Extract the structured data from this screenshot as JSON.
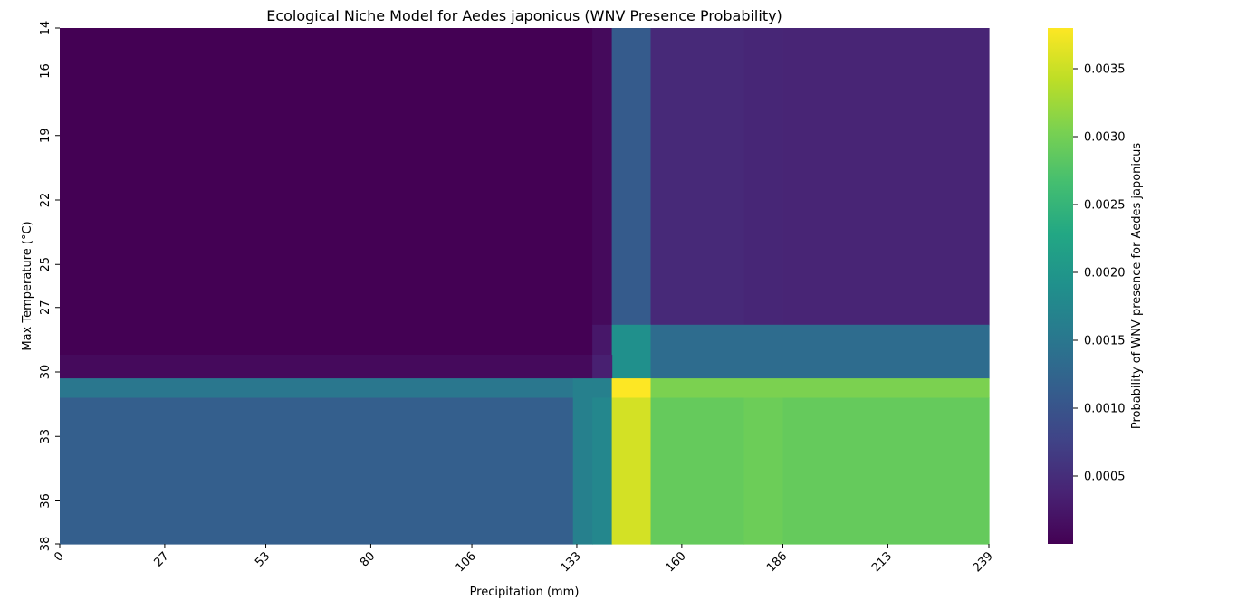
{
  "chart_data": {
    "type": "heatmap",
    "title": "Ecological Niche Model for Aedes japonicus (WNV Presence Probability)",
    "xlabel": "Precipitation (mm)",
    "ylabel": "Max Temperature (°C)",
    "x_tick_labels": [
      "0",
      "27",
      "53",
      "80",
      "106",
      "133",
      "160",
      "186",
      "213",
      "239"
    ],
    "x_tick_values": [
      0,
      27,
      53,
      80,
      106,
      133,
      160,
      186,
      213,
      239
    ],
    "y_tick_labels": [
      "14",
      "16",
      "19",
      "22",
      "25",
      "27",
      "30",
      "33",
      "36",
      "38"
    ],
    "y_tick_values": [
      14,
      16,
      19,
      22,
      25,
      27,
      30,
      33,
      36,
      38
    ],
    "colormap": "viridis",
    "colorbar": {
      "label": "Probability of WNV presence for Aedes japonicus",
      "min": 0.0,
      "max": 0.0038,
      "tick_values": [
        0.0005,
        0.001,
        0.0015,
        0.002,
        0.0025,
        0.003,
        0.0035
      ],
      "tick_labels": [
        "0.0005",
        "0.0010",
        "0.0015",
        "0.0020",
        "0.0025",
        "0.0030",
        "0.0035"
      ]
    },
    "x_range": [
      0,
      239
    ],
    "y_range": [
      14,
      38
    ],
    "regions": [
      {
        "x": [
          0,
          137
        ],
        "y": [
          14,
          29.2
        ],
        "value": 0.0
      },
      {
        "x": [
          137,
          142
        ],
        "y": [
          14,
          27.8
        ],
        "value": 0.0001
      },
      {
        "x": [
          142,
          152
        ],
        "y": [
          14,
          27.8
        ],
        "value": 0.0011
      },
      {
        "x": [
          152,
          176
        ],
        "y": [
          14,
          27.8
        ],
        "value": 0.00045
      },
      {
        "x": [
          176,
          186
        ],
        "y": [
          14,
          27.8
        ],
        "value": 0.00042
      },
      {
        "x": [
          186,
          239
        ],
        "y": [
          14,
          27.8
        ],
        "value": 0.0004
      },
      {
        "x": [
          137,
          142
        ],
        "y": [
          27.8,
          29.2
        ],
        "value": 0.00025
      },
      {
        "x": [
          142,
          152
        ],
        "y": [
          27.8,
          30.3
        ],
        "value": 0.0019
      },
      {
        "x": [
          152,
          239
        ],
        "y": [
          27.8,
          30.3
        ],
        "value": 0.00135
      },
      {
        "x": [
          0,
          137
        ],
        "y": [
          29.2,
          30.3
        ],
        "value": 0.0001
      },
      {
        "x": [
          137,
          142
        ],
        "y": [
          29.2,
          30.3
        ],
        "value": 0.00035
      },
      {
        "x": [
          0,
          132
        ],
        "y": [
          30.3,
          31.2
        ],
        "value": 0.0015
      },
      {
        "x": [
          132,
          142
        ],
        "y": [
          30.3,
          31.2
        ],
        "value": 0.00165
      },
      {
        "x": [
          142,
          152
        ],
        "y": [
          30.3,
          31.2
        ],
        "value": 0.0038
      },
      {
        "x": [
          152,
          239
        ],
        "y": [
          30.3,
          31.2
        ],
        "value": 0.00305
      },
      {
        "x": [
          0,
          132
        ],
        "y": [
          31.2,
          38
        ],
        "value": 0.00115
      },
      {
        "x": [
          132,
          137
        ],
        "y": [
          31.2,
          38
        ],
        "value": 0.00165
      },
      {
        "x": [
          137,
          142
        ],
        "y": [
          31.2,
          38
        ],
        "value": 0.00175
      },
      {
        "x": [
          142,
          152
        ],
        "y": [
          31.2,
          38
        ],
        "value": 0.00355
      },
      {
        "x": [
          152,
          176
        ],
        "y": [
          31.2,
          38
        ],
        "value": 0.0029
      },
      {
        "x": [
          176,
          186
        ],
        "y": [
          31.2,
          38
        ],
        "value": 0.00295
      },
      {
        "x": [
          186,
          239
        ],
        "y": [
          31.2,
          38
        ],
        "value": 0.0029
      }
    ]
  }
}
